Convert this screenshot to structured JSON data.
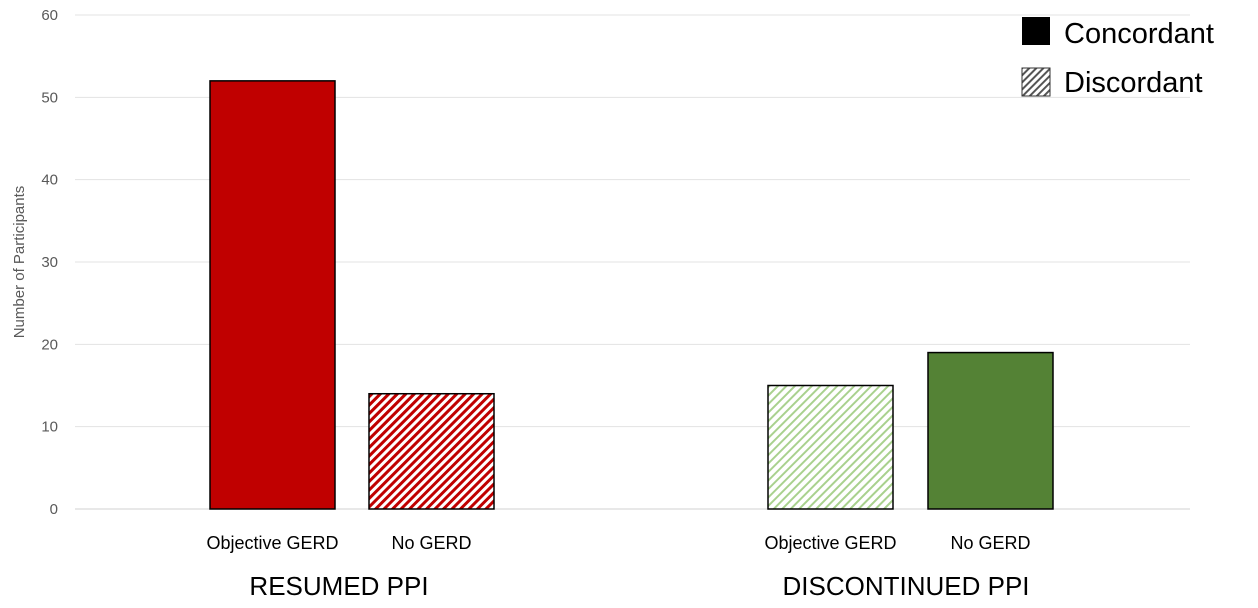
{
  "chart_data": {
    "type": "bar",
    "ylabel": "Number of Participants",
    "ylim": [
      0,
      60
    ],
    "yticks": [
      0,
      10,
      20,
      30,
      40,
      50,
      60
    ],
    "grid": true,
    "groups": [
      {
        "label": "RESUMED PPI",
        "bars": [
          {
            "category": "Objective GERD",
            "value": 52,
            "pattern": "Concordant",
            "color": "#c00000"
          },
          {
            "category": "No GERD",
            "value": 14,
            "pattern": "Discordant",
            "color": "#c00000"
          }
        ]
      },
      {
        "label": "DISCONTINUED PPI",
        "bars": [
          {
            "category": "Objective GERD",
            "value": 15,
            "pattern": "Discordant",
            "color": "#a9d18e"
          },
          {
            "category": "No GERD",
            "value": 19,
            "pattern": "Concordant",
            "color": "#548235"
          }
        ]
      }
    ],
    "legend": {
      "position": "top-right",
      "items": [
        {
          "label": "Concordant",
          "style": "solid"
        },
        {
          "label": "Discordant",
          "style": "hatched"
        }
      ]
    }
  }
}
